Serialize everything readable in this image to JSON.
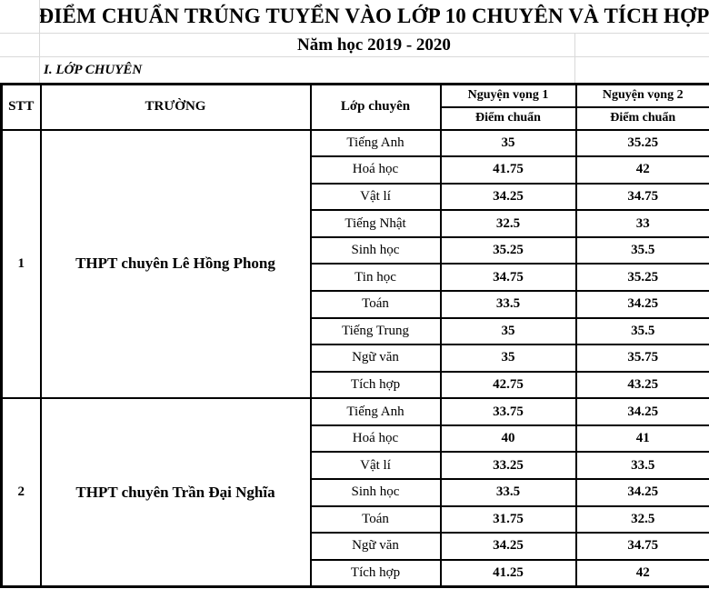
{
  "page": {
    "title": "ĐIỂM CHUẨN TRÚNG TUYỂN VÀO LỚP 10 CHUYÊN VÀ TÍCH HỢP",
    "subtitle": "Năm học 2019 - 2020",
    "section": "I. LỚP CHUYÊN"
  },
  "colors": {
    "text": "#000000",
    "table_border": "#000000",
    "gridline": "#d9d9d9",
    "background": "#ffffff"
  },
  "table": {
    "headers": {
      "stt": "STT",
      "school": "TRƯỜNG",
      "subject": "Lớp chuyên",
      "nv1": "Nguyện vọng 1",
      "nv2": "Nguyện vọng 2",
      "nv1_score": "Điểm chuẩn",
      "nv2_score": "Điểm chuẩn"
    },
    "schools": [
      {
        "stt": "1",
        "name": "THPT chuyên Lê Hồng Phong",
        "rows": [
          {
            "subject": "Tiếng Anh",
            "nv1": "35",
            "nv2": "35.25"
          },
          {
            "subject": "Hoá học",
            "nv1": "41.75",
            "nv2": "42"
          },
          {
            "subject": "Vật lí",
            "nv1": "34.25",
            "nv2": "34.75"
          },
          {
            "subject": "Tiếng Nhật",
            "nv1": "32.5",
            "nv2": "33"
          },
          {
            "subject": "Sinh học",
            "nv1": "35.25",
            "nv2": "35.5"
          },
          {
            "subject": "Tin học",
            "nv1": "34.75",
            "nv2": "35.25"
          },
          {
            "subject": "Toán",
            "nv1": "33.5",
            "nv2": "34.25"
          },
          {
            "subject": "Tiếng Trung",
            "nv1": "35",
            "nv2": "35.5"
          },
          {
            "subject": "Ngữ văn",
            "nv1": "35",
            "nv2": "35.75"
          },
          {
            "subject": "Tích hợp",
            "nv1": "42.75",
            "nv2": "43.25"
          }
        ]
      },
      {
        "stt": "2",
        "name": "THPT chuyên Trần Đại Nghĩa",
        "rows": [
          {
            "subject": "Tiếng Anh",
            "nv1": "33.75",
            "nv2": "34.25"
          },
          {
            "subject": "Hoá học",
            "nv1": "40",
            "nv2": "41"
          },
          {
            "subject": "Vật lí",
            "nv1": "33.25",
            "nv2": "33.5"
          },
          {
            "subject": "Sinh học",
            "nv1": "33.5",
            "nv2": "34.25"
          },
          {
            "subject": "Toán",
            "nv1": "31.75",
            "nv2": "32.5"
          },
          {
            "subject": "Ngữ văn",
            "nv1": "34.25",
            "nv2": "34.75"
          },
          {
            "subject": "Tích hợp",
            "nv1": "41.25",
            "nv2": "42"
          }
        ]
      }
    ]
  }
}
